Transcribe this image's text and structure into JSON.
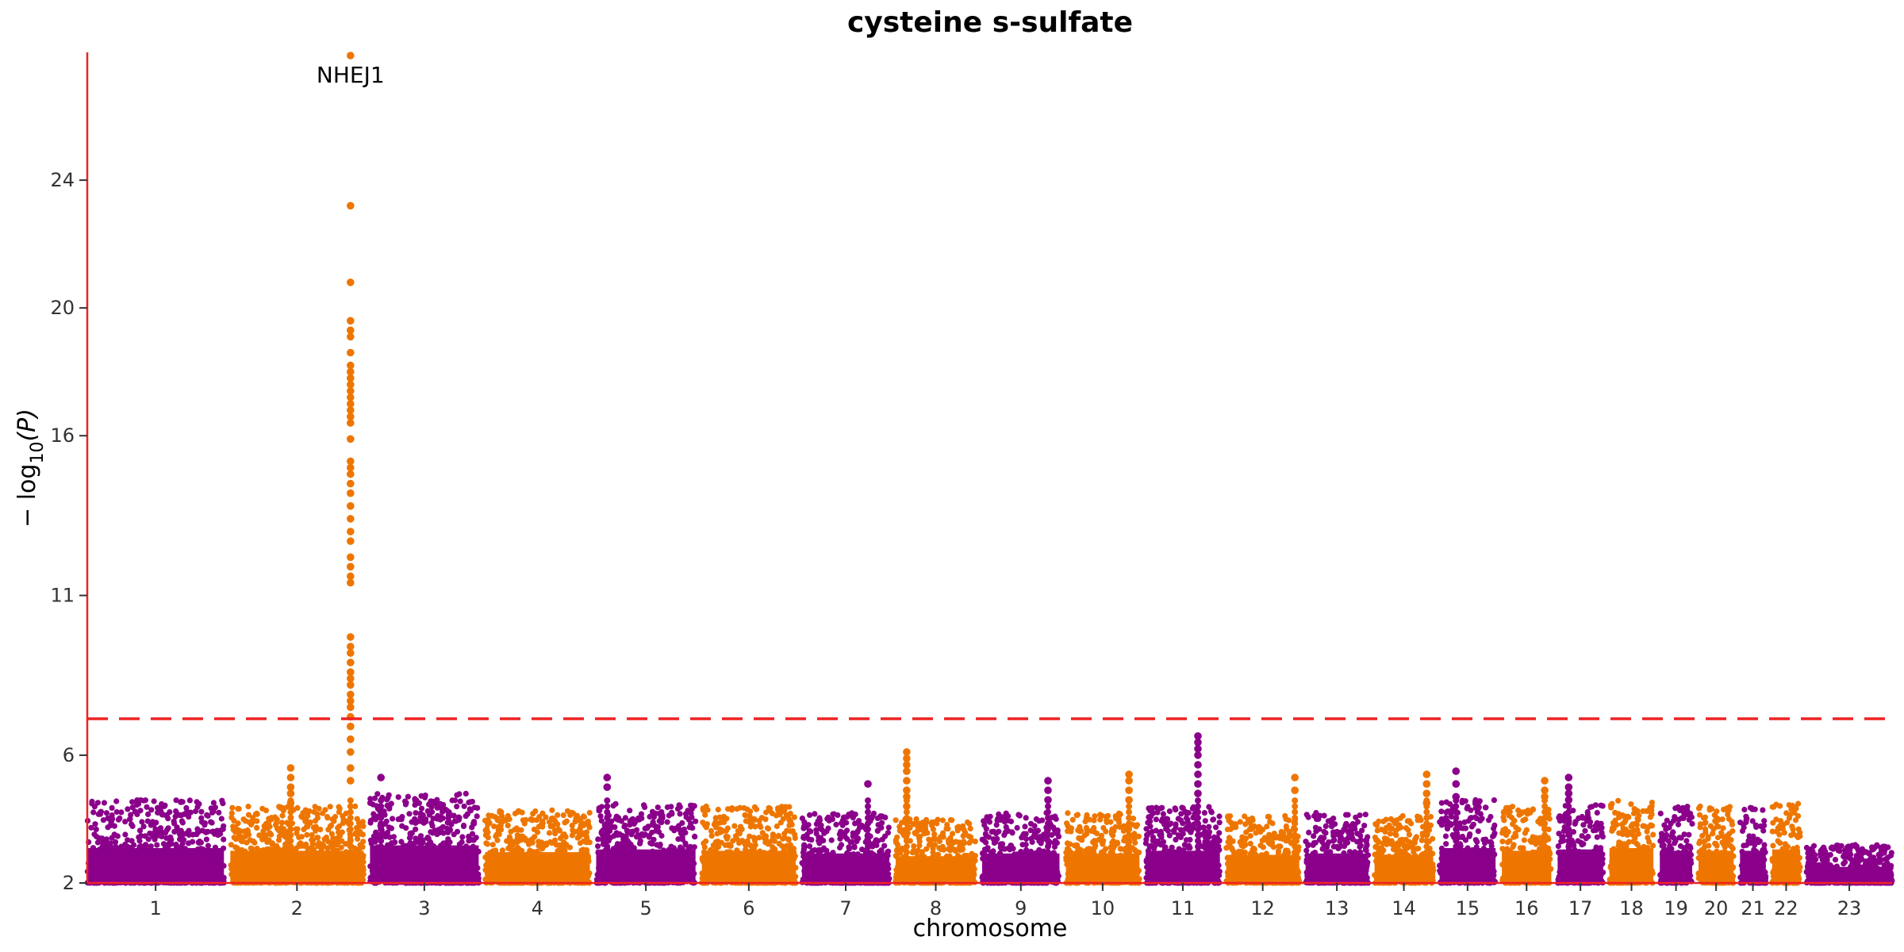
{
  "chart_data": {
    "type": "scatter",
    "title": "cysteine s-sulfate",
    "xlabel": "chromosome",
    "ylabel": "− log10(P)",
    "ylabel_parts": {
      "prefix": "− log",
      "sub": "10",
      "suffix": "(P)"
    },
    "y_ticks": [
      2,
      6,
      11,
      16,
      20,
      24
    ],
    "ylim": [
      2,
      28
    ],
    "significance_threshold": 7.3,
    "threshold_style": "dashed",
    "grid": false,
    "colors": {
      "odd_chrom": "#8B008B",
      "even_chrom": "#EE7600",
      "axis": "#EE2222",
      "threshold": "#EE2222"
    },
    "chromosomes": [
      "1",
      "2",
      "3",
      "4",
      "5",
      "6",
      "7",
      "8",
      "9",
      "10",
      "11",
      "12",
      "13",
      "14",
      "15",
      "16",
      "17",
      "18",
      "19",
      "20",
      "21",
      "22",
      "23"
    ],
    "chrom_lengths_mb": [
      249,
      243,
      198,
      191,
      181,
      171,
      159,
      146,
      141,
      134,
      135,
      133,
      114,
      107,
      102,
      90,
      83,
      80,
      59,
      64,
      47,
      51,
      156
    ],
    "chrom_baseline_max": [
      4.6,
      4.4,
      4.8,
      4.3,
      4.5,
      4.4,
      4.2,
      4.0,
      4.2,
      4.2,
      4.4,
      4.1,
      4.2,
      4.1,
      4.6,
      4.4,
      4.5,
      4.6,
      4.4,
      4.4,
      4.4,
      4.5,
      3.2
    ],
    "annotations": [
      {
        "label": "NHEJ1",
        "chrom": "2",
        "pos_mb": 219,
        "neglog10p": 27.9
      }
    ],
    "peaks": [
      {
        "chrom": "2",
        "pos_mb": 219,
        "values": [
          27.9,
          23.2,
          20.8,
          19.6,
          19.3,
          19.1,
          18.6,
          18.2,
          18.0,
          17.8,
          17.6,
          17.4,
          17.2,
          17.0,
          16.8,
          16.6,
          16.4,
          15.9,
          15.2,
          15.0,
          14.8,
          14.5,
          14.2,
          13.8,
          13.4,
          13.0,
          12.7,
          12.2,
          11.9,
          11.6,
          11.4,
          9.7,
          9.4,
          9.2,
          8.9,
          8.6,
          8.4,
          8.2,
          7.9,
          7.7,
          7.5,
          7.2,
          6.9,
          6.5,
          6.1,
          5.6,
          5.2
        ]
      },
      {
        "chrom": "2",
        "pos_mb": 110,
        "values": [
          5.6,
          5.3,
          5.0,
          4.8,
          4.5
        ]
      },
      {
        "chrom": "8",
        "pos_mb": 20,
        "values": [
          6.1,
          5.9,
          5.7,
          5.5,
          5.2,
          4.9,
          4.7,
          4.4
        ]
      },
      {
        "chrom": "11",
        "pos_mb": 95,
        "values": [
          6.6,
          6.4,
          6.2,
          6.0,
          5.7,
          5.4,
          5.1,
          4.8
        ]
      },
      {
        "chrom": "10",
        "pos_mb": 115,
        "values": [
          5.4,
          5.2,
          4.9,
          4.6
        ]
      },
      {
        "chrom": "14",
        "pos_mb": 95,
        "values": [
          5.4,
          5.1,
          4.8,
          4.5
        ]
      },
      {
        "chrom": "15",
        "pos_mb": 30,
        "values": [
          5.5,
          5.1,
          4.7
        ]
      },
      {
        "chrom": "17",
        "pos_mb": 20,
        "values": [
          5.3,
          5.0,
          4.8,
          4.6
        ]
      },
      {
        "chrom": "16",
        "pos_mb": 78,
        "values": [
          5.2,
          4.9,
          4.7
        ]
      },
      {
        "chrom": "3",
        "pos_mb": 20,
        "values": [
          5.3
        ]
      },
      {
        "chrom": "5",
        "pos_mb": 20,
        "values": [
          5.3,
          5.0
        ]
      },
      {
        "chrom": "7",
        "pos_mb": 120,
        "values": [
          5.1
        ]
      },
      {
        "chrom": "12",
        "pos_mb": 125,
        "values": [
          5.3,
          4.9
        ]
      },
      {
        "chrom": "9",
        "pos_mb": 120,
        "values": [
          5.2,
          4.9,
          4.6
        ]
      }
    ]
  }
}
